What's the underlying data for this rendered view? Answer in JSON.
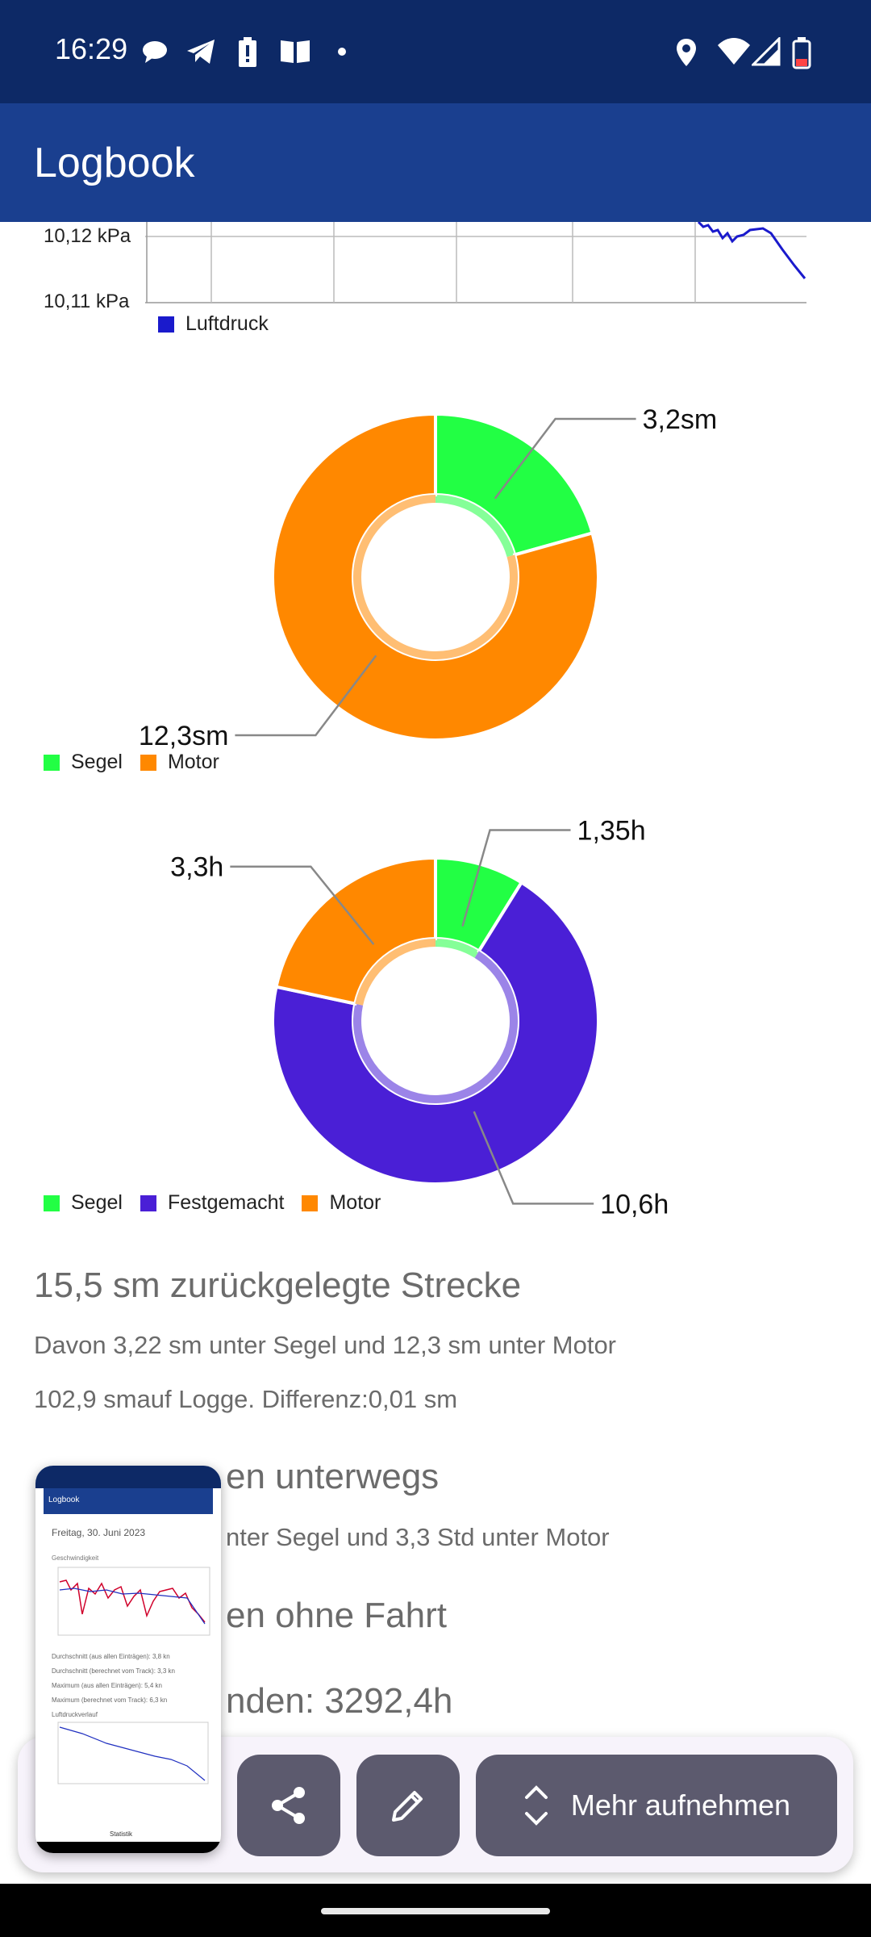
{
  "status_bar": {
    "time": "16:29"
  },
  "app_bar": {
    "title": "Logbook"
  },
  "pressure_chart": {
    "tick_labels": [
      "10,12 kPa",
      "10,11 kPa"
    ],
    "legend": "Luftdruck",
    "colors": {
      "line": "#1a1acc"
    }
  },
  "chart_data": [
    {
      "type": "pie",
      "variant": "donut",
      "labels": [
        "Segel",
        "Motor"
      ],
      "values": [
        3.2,
        12.3
      ],
      "value_labels": [
        "3,2sm",
        "12,3sm"
      ],
      "colors": [
        "#22ff44",
        "#ff8800"
      ],
      "legend": [
        "Segel",
        "Motor"
      ]
    },
    {
      "type": "pie",
      "variant": "donut",
      "labels": [
        "Segel",
        "Festgemacht",
        "Motor"
      ],
      "values": [
        1.35,
        10.6,
        3.3
      ],
      "value_labels": [
        "1,35h",
        "10,6h",
        "3,3h"
      ],
      "colors": [
        "#22ff44",
        "#4a1fd6",
        "#ff8800"
      ],
      "legend": [
        "Segel",
        "Festgemacht",
        "Motor"
      ]
    }
  ],
  "stats": {
    "distance_heading": "15,5 sm zurückgelegte Strecke",
    "distance_detail": "Davon 3,22 sm unter Segel und 12,3 sm unter Motor",
    "log_detail": "102,9 smauf Logge. Differenz:0,01 sm",
    "hours_heading": "en unterwegs",
    "hours_detail": "nter Segel und 3,3 Std unter Motor",
    "idle_heading": "en ohne Fahrt",
    "engine_hours": "nden: 3292,4h"
  },
  "thumbnail": {
    "title": "Logbook",
    "date": "Freitag, 30. Juni 2023",
    "section": "Geschwindigkeit",
    "lines": [
      "Durchschnitt (aus allen Einträgen): 3,8 kn",
      "Durchschnitt (berechnet vom Track): 3,3 kn",
      "Maximum (aus allen Einträgen): 5,4 kn",
      "Maximum (berechnet vom Track): 6,3 kn",
      "Luftdruckverlauf"
    ],
    "nav_label": "Statistik"
  },
  "actions": {
    "share_icon": "share-icon",
    "edit_icon": "pencil-icon",
    "more_label": "Mehr aufnehmen"
  }
}
